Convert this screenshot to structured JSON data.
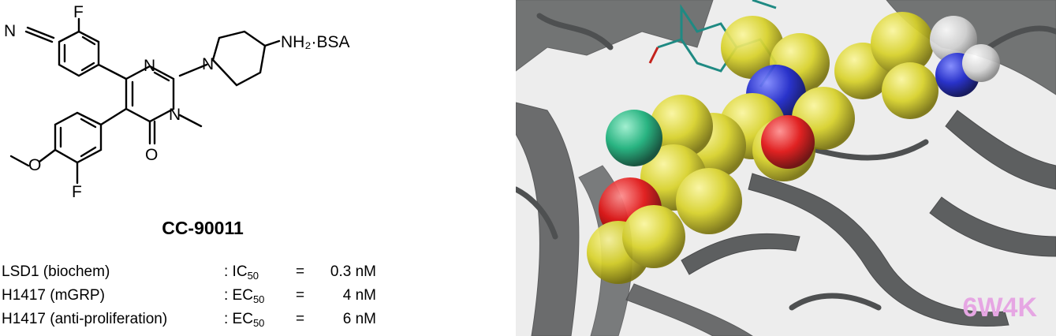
{
  "structure": {
    "atoms": {
      "N_nitrile": "N",
      "F_top": "F",
      "N_pyrimidine": "N",
      "N_methyl": "N",
      "O_carbonyl": "O",
      "N_piperidine": "N",
      "amine_salt": "NH₂·BSA",
      "O_methoxy": "O",
      "F_bottom": "F"
    },
    "compound_name": "CC-90011"
  },
  "assays": [
    {
      "label": "LSD1 (biochem)",
      "metric": ": IC",
      "metric_sub": "50",
      "eq": "=",
      "value": "0.3 nM"
    },
    {
      "label": "H1417 (mGRP)",
      "metric": ": EC",
      "metric_sub": "50",
      "eq": "=",
      "value": "4 nM"
    },
    {
      "label": "H1417 (anti-proliferation)",
      "metric": ": EC",
      "metric_sub": "50",
      "eq": "=",
      "value": "6 nM"
    }
  ],
  "crystal": {
    "pdb_id": "6W4K",
    "colors": {
      "ribbon": "#5d5f60",
      "carbon": "#d8d22a",
      "oxygen": "#e01313",
      "nitrogen": "#1b25c8",
      "fluorine": "#1bb07a",
      "hydrogen": "#dcdcdc",
      "cofactor": "#1f8a83",
      "label": "#e6a6e3"
    }
  }
}
